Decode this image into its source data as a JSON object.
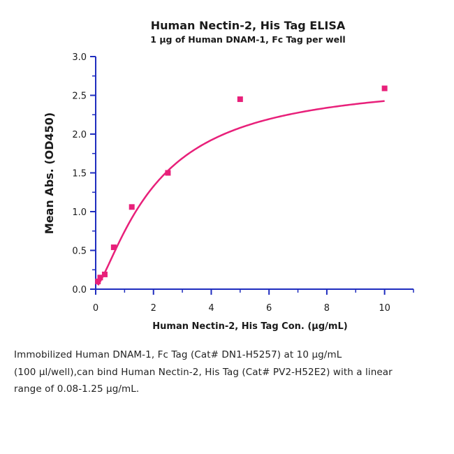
{
  "chart_data": {
    "type": "scatter",
    "title": "Human Nectin-2, His Tag ELISA",
    "subtitle": "1 μg of Human DNAM-1, Fc Tag per well",
    "xlabel": "Human Nectin-2, His Tag Con. (μg/mL)",
    "ylabel": "Mean Abs. (OD450)",
    "xlim": [
      0,
      11
    ],
    "ylim": [
      0,
      3.0
    ],
    "x_ticks": [
      0,
      2,
      4,
      6,
      8,
      10
    ],
    "x_tick_labels": [
      "0",
      "2",
      "4",
      "6",
      "8",
      "10"
    ],
    "y_ticks": [
      0,
      0.5,
      1.0,
      1.5,
      2.0,
      2.5,
      3.0
    ],
    "y_tick_labels": [
      "0.0",
      "0.5",
      "1.0",
      "1.5",
      "2.0",
      "2.5",
      "3.0"
    ],
    "grid": false,
    "series": [
      {
        "x": [
          0.078,
          0.156,
          0.313,
          0.625,
          1.25,
          2.5,
          5.0,
          10.0
        ],
        "y": [
          0.1,
          0.15,
          0.19,
          0.54,
          1.06,
          1.5,
          2.45,
          2.59
        ]
      }
    ],
    "fit_curve": {
      "type": "four-parameter logistic",
      "color": "#e8207a"
    },
    "colors": {
      "axis": "#1f2dbf",
      "series": "#e8207a"
    }
  },
  "caption": {
    "lines": [
      "Immobilized Human DNAM-1, Fc Tag (Cat# DN1-H5257) at 10 μg/mL",
      "(100 μl/well),can bind Human Nectin-2, His Tag (Cat# PV2-H52E2) with a linear",
      "range of 0.08-1.25 μg/mL."
    ]
  }
}
